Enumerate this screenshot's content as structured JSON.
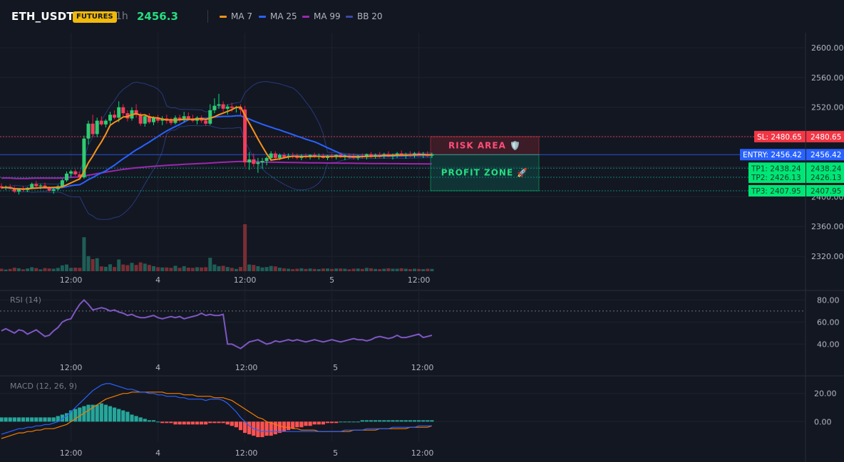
{
  "header": {
    "symbol": "ETH_USDT",
    "badge": "FUTURES",
    "timeframe": "1h",
    "price": "2456.3",
    "legend": [
      {
        "label": "MA 7",
        "color": "#f7931a"
      },
      {
        "label": "MA 25",
        "color": "#2962ff"
      },
      {
        "label": "MA 99",
        "color": "#9c27b0"
      },
      {
        "label": "BB 20",
        "color": "#1e3a8a"
      }
    ]
  },
  "colors": {
    "up": "#26a69a",
    "up_bright": "#00e676",
    "down": "#ef5350",
    "down_bright": "#ff1744",
    "grid": "#1e222d",
    "axis_text": "#b2b5be",
    "rsi": "#7e57c2",
    "macd": "#2962ff",
    "signal": "#f57c00"
  },
  "chart_data": [
    {
      "type": "candlestick",
      "panel": "price",
      "y_ticks": [
        2320,
        2360,
        2400,
        2440,
        2480,
        2520,
        2560,
        2600
      ],
      "y_tick_labels": [
        "2320.00",
        "2360.00",
        "2400.00",
        "2440.00",
        "2480.00",
        "2520.00",
        "2560.00",
        "2600.00"
      ],
      "ylim": [
        2300,
        2620
      ],
      "x_ticks": [
        "12:00",
        "4",
        "12:00",
        "5",
        "12:00"
      ],
      "x_tick_index": [
        16,
        36,
        56,
        76,
        96
      ],
      "candles": [
        [
          2414,
          2418,
          2410,
          2412
        ],
        [
          2412,
          2415,
          2409,
          2413
        ],
        [
          2413,
          2417,
          2410,
          2411
        ],
        [
          2411,
          2414,
          2405,
          2407
        ],
        [
          2407,
          2411,
          2403,
          2410
        ],
        [
          2410,
          2414,
          2407,
          2409
        ],
        [
          2409,
          2413,
          2406,
          2412
        ],
        [
          2412,
          2419,
          2410,
          2417
        ],
        [
          2417,
          2421,
          2412,
          2414
        ],
        [
          2414,
          2417,
          2410,
          2415
        ],
        [
          2415,
          2419,
          2412,
          2411
        ],
        [
          2411,
          2414,
          2407,
          2408
        ],
        [
          2408,
          2412,
          2404,
          2410
        ],
        [
          2410,
          2416,
          2408,
          2414
        ],
        [
          2414,
          2424,
          2412,
          2422
        ],
        [
          2422,
          2434,
          2420,
          2431
        ],
        [
          2431,
          2436,
          2426,
          2434
        ],
        [
          2434,
          2437,
          2428,
          2430
        ],
        [
          2430,
          2434,
          2426,
          2426
        ],
        [
          2426,
          2482,
          2424,
          2478
        ],
        [
          2478,
          2502,
          2470,
          2498
        ],
        [
          2498,
          2510,
          2480,
          2484
        ],
        [
          2484,
          2506,
          2480,
          2502
        ],
        [
          2502,
          2508,
          2495,
          2497
        ],
        [
          2497,
          2504,
          2493,
          2502
        ],
        [
          2502,
          2514,
          2497,
          2510
        ],
        [
          2510,
          2516,
          2504,
          2506
        ],
        [
          2506,
          2528,
          2500,
          2520
        ],
        [
          2520,
          2524,
          2508,
          2512
        ],
        [
          2512,
          2516,
          2501,
          2505
        ],
        [
          2505,
          2520,
          2502,
          2516
        ],
        [
          2516,
          2524,
          2506,
          2510
        ],
        [
          2510,
          2513,
          2495,
          2498
        ],
        [
          2498,
          2510,
          2494,
          2508
        ],
        [
          2508,
          2512,
          2498,
          2500
        ],
        [
          2500,
          2508,
          2496,
          2506
        ],
        [
          2506,
          2510,
          2499,
          2502
        ],
        [
          2502,
          2508,
          2496,
          2505
        ],
        [
          2505,
          2510,
          2498,
          2502
        ],
        [
          2502,
          2506,
          2496,
          2499
        ],
        [
          2499,
          2509,
          2497,
          2506
        ],
        [
          2506,
          2510,
          2500,
          2503
        ],
        [
          2503,
          2514,
          2500,
          2508
        ],
        [
          2508,
          2513,
          2502,
          2505
        ],
        [
          2505,
          2510,
          2500,
          2502
        ],
        [
          2502,
          2508,
          2497,
          2506
        ],
        [
          2506,
          2509,
          2499,
          2502
        ],
        [
          2502,
          2506,
          2495,
          2498
        ],
        [
          2498,
          2524,
          2496,
          2516
        ],
        [
          2516,
          2532,
          2512,
          2522
        ],
        [
          2522,
          2538,
          2518,
          2524
        ],
        [
          2524,
          2528,
          2514,
          2518
        ],
        [
          2518,
          2524,
          2510,
          2521
        ],
        [
          2521,
          2526,
          2514,
          2519
        ],
        [
          2519,
          2522,
          2513,
          2520
        ],
        [
          2520,
          2524,
          2510,
          2517
        ],
        [
          2517,
          2522,
          2440,
          2446
        ],
        [
          2446,
          2460,
          2436,
          2450
        ],
        [
          2450,
          2458,
          2440,
          2444
        ],
        [
          2444,
          2452,
          2432,
          2446
        ],
        [
          2446,
          2452,
          2438,
          2448
        ],
        [
          2448,
          2454,
          2442,
          2452
        ],
        [
          2452,
          2461,
          2448,
          2458
        ],
        [
          2458,
          2461,
          2450,
          2452
        ],
        [
          2452,
          2458,
          2449,
          2456
        ],
        [
          2456,
          2459,
          2451,
          2453
        ],
        [
          2453,
          2458,
          2450,
          2455
        ],
        [
          2455,
          2459,
          2451,
          2454
        ],
        [
          2454,
          2458,
          2450,
          2452
        ],
        [
          2452,
          2457,
          2449,
          2455
        ],
        [
          2455,
          2458,
          2451,
          2453
        ],
        [
          2453,
          2457,
          2450,
          2456
        ],
        [
          2456,
          2459,
          2452,
          2454
        ],
        [
          2454,
          2458,
          2450,
          2455
        ],
        [
          2455,
          2458,
          2451,
          2452
        ],
        [
          2452,
          2456,
          2449,
          2455
        ],
        [
          2455,
          2458,
          2451,
          2453
        ],
        [
          2453,
          2457,
          2450,
          2456
        ],
        [
          2456,
          2459,
          2452,
          2453
        ],
        [
          2453,
          2457,
          2449,
          2455
        ],
        [
          2455,
          2458,
          2451,
          2454
        ],
        [
          2454,
          2458,
          2450,
          2452
        ],
        [
          2452,
          2456,
          2449,
          2455
        ],
        [
          2455,
          2458,
          2451,
          2453
        ],
        [
          2453,
          2458,
          2450,
          2457
        ],
        [
          2457,
          2460,
          2452,
          2454
        ],
        [
          2454,
          2458,
          2451,
          2456
        ],
        [
          2456,
          2460,
          2452,
          2455
        ],
        [
          2455,
          2459,
          2451,
          2457
        ],
        [
          2457,
          2461,
          2453,
          2454
        ],
        [
          2454,
          2458,
          2450,
          2456
        ],
        [
          2456,
          2460,
          2452,
          2458
        ],
        [
          2458,
          2462,
          2454,
          2455
        ],
        [
          2455,
          2459,
          2451,
          2457
        ],
        [
          2457,
          2461,
          2453,
          2456
        ],
        [
          2456,
          2460,
          2452,
          2458
        ],
        [
          2458,
          2461,
          2454,
          2456
        ],
        [
          2456,
          2460,
          2452,
          2457
        ],
        [
          2457,
          2461,
          2453,
          2455
        ],
        [
          2455,
          2459,
          2452,
          2457
        ]
      ],
      "levels": [
        {
          "label": "SL: 2480.65",
          "price_label": "2480.65",
          "value": 2480.65,
          "kind": "sl"
        },
        {
          "label": "ENTRY: 2456.42",
          "price_label": "2456.42",
          "value": 2456.42,
          "kind": "entry"
        },
        {
          "label": "TP1: 2438.24",
          "price_label": "2438.24",
          "value": 2438.24,
          "kind": "tp"
        },
        {
          "label": "TP2: 2426.13",
          "price_label": "2426.13",
          "value": 2426.13,
          "kind": "tp"
        },
        {
          "label": "TP3: 2407.95",
          "price_label": "2407.95",
          "value": 2407.95,
          "kind": "tp"
        }
      ],
      "zones": [
        {
          "label": "RISK AREA 🛡️",
          "from": 2456.42,
          "to": 2480.65,
          "kind": "risk"
        },
        {
          "label": "PROFIT ZONE 🚀",
          "from": 2407.95,
          "to": 2456.42,
          "kind": "profit"
        }
      ]
    },
    {
      "type": "line",
      "panel": "rsi",
      "title": "RSI (14)",
      "y_ticks": [
        40,
        60,
        80
      ],
      "y_tick_labels": [
        "40.00",
        "60.00",
        "80.00"
      ],
      "ylim": [
        28,
        88
      ],
      "overbought": 70,
      "x_ticks": [
        "12:00",
        "4",
        "12:00",
        "5",
        "12:00"
      ],
      "values": [
        52,
        54,
        52,
        50,
        53,
        52,
        49,
        51,
        53,
        50,
        47,
        48,
        52,
        55,
        60,
        62,
        63,
        70,
        76,
        80,
        76,
        71,
        72,
        73,
        72,
        70,
        71,
        69,
        68,
        66,
        67,
        65,
        64,
        64,
        65,
        66,
        64,
        63,
        64,
        65,
        64,
        65,
        63,
        64,
        65,
        66,
        68,
        66,
        67,
        66,
        66,
        67,
        40,
        40,
        38,
        36,
        39,
        42,
        43,
        44,
        42,
        40,
        41,
        43,
        42,
        43,
        44,
        43,
        44,
        43,
        42,
        43,
        44,
        43,
        42,
        43,
        44,
        43,
        42,
        43,
        44,
        45,
        44,
        44,
        43,
        44,
        46,
        47,
        46,
        45,
        46,
        48,
        46,
        46,
        47,
        48,
        49,
        46,
        47,
        48
      ]
    },
    {
      "type": "bar+line",
      "panel": "macd",
      "title": "MACD (12, 26, 9)",
      "y_ticks": [
        0,
        20
      ],
      "y_tick_labels": [
        "0.00",
        "20.00"
      ],
      "ylim": [
        -14,
        32
      ],
      "x_ticks": [
        "12:00",
        "4",
        "12:00",
        "5",
        "12:00"
      ],
      "histogram": [
        3,
        3,
        3,
        3,
        3,
        3,
        3,
        3,
        3,
        3,
        3,
        3,
        3,
        4,
        5,
        6,
        8,
        9,
        10,
        11,
        12,
        12,
        12,
        13,
        12,
        11,
        10,
        9,
        8,
        7,
        5,
        4,
        3,
        2,
        1,
        1,
        0,
        -1,
        -1,
        -1,
        -2,
        -2,
        -2,
        -2,
        -2,
        -2,
        -2,
        -2,
        -1,
        -1,
        -1,
        -1,
        -2,
        -3,
        -4,
        -6,
        -8,
        -9,
        -10,
        -11,
        -11,
        -10,
        -10,
        -9,
        -8,
        -7,
        -6,
        -5,
        -4,
        -4,
        -3,
        -3,
        -2,
        -2,
        -2,
        -1,
        -1,
        -1,
        0,
        0,
        0,
        0,
        0,
        1,
        1,
        1,
        1,
        1,
        1,
        1,
        1,
        1,
        1,
        1,
        1,
        1,
        1,
        1,
        1,
        1
      ],
      "macd": [
        -9,
        -8,
        -7,
        -6,
        -5,
        -5,
        -4,
        -4,
        -3,
        -3,
        -2,
        -2,
        -1,
        0,
        2,
        4,
        7,
        10,
        13,
        16,
        19,
        22,
        24,
        26,
        27,
        27,
        26,
        25,
        24,
        23,
        23,
        22,
        21,
        21,
        20,
        20,
        19,
        19,
        18,
        18,
        18,
        17,
        17,
        16,
        16,
        16,
        16,
        15,
        16,
        16,
        16,
        15,
        13,
        10,
        7,
        3,
        0,
        -3,
        -5,
        -6,
        -7,
        -7,
        -7,
        -7,
        -7,
        -7,
        -7,
        -7,
        -7,
        -7,
        -7,
        -7,
        -7,
        -7,
        -7,
        -7,
        -7,
        -7,
        -7,
        -6,
        -6,
        -6,
        -6,
        -6,
        -5,
        -5,
        -5,
        -5,
        -5,
        -5,
        -4,
        -4,
        -4,
        -4,
        -4,
        -4,
        -3,
        -3,
        -3,
        -3
      ],
      "signal": [
        -12,
        -11,
        -10,
        -9,
        -8,
        -8,
        -7,
        -7,
        -6,
        -6,
        -5,
        -5,
        -5,
        -4,
        -3,
        -2,
        0,
        2,
        4,
        6,
        8,
        10,
        12,
        14,
        16,
        17,
        18,
        19,
        20,
        20,
        21,
        21,
        21,
        21,
        21,
        21,
        21,
        21,
        20,
        20,
        20,
        20,
        19,
        19,
        19,
        18,
        18,
        18,
        18,
        17,
        17,
        17,
        16,
        15,
        13,
        11,
        9,
        7,
        5,
        3,
        2,
        0,
        -1,
        -2,
        -3,
        -4,
        -4,
        -5,
        -5,
        -6,
        -6,
        -6,
        -6,
        -7,
        -7,
        -7,
        -7,
        -7,
        -7,
        -7,
        -7,
        -6,
        -6,
        -6,
        -6,
        -6,
        -6,
        -5,
        -5,
        -5,
        -5,
        -5,
        -5,
        -5,
        -4,
        -4,
        -4,
        -4,
        -4,
        -3
      ]
    }
  ]
}
